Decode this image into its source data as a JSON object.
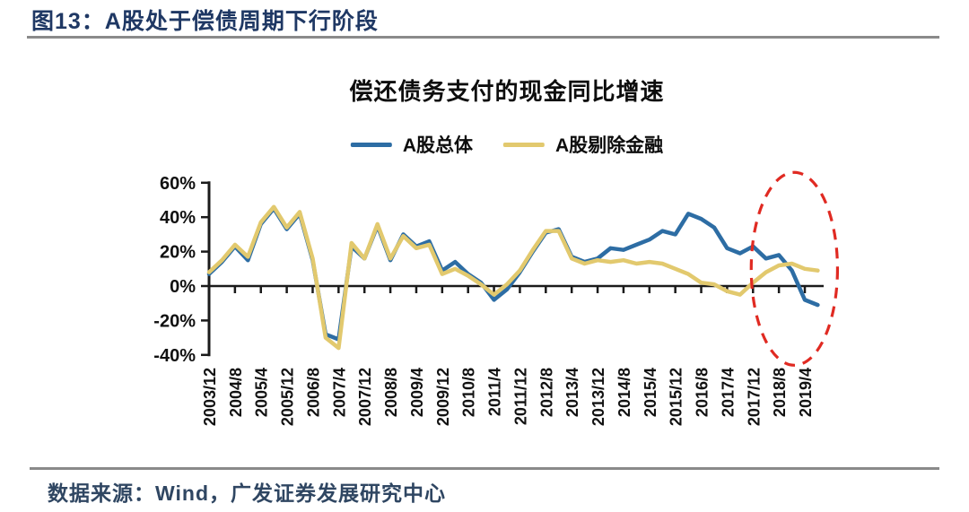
{
  "figure_title": "图13：A股处于偿债周期下行阶段",
  "source_note": "数据来源：Wind，广发证券发展研究中心",
  "colors": {
    "title_navy": "#1f3864",
    "rule_gray": "#8a8a8a",
    "axis_black": "#1a1a1a",
    "series_overall_blue": "#2d6da4",
    "series_exfin_yellow": "#e2c96e",
    "annotation_red": "#e02a22",
    "source_text_navy": "#2f4662"
  },
  "chart_data": {
    "type": "line",
    "title": "偿还债务支付的现金同比增速",
    "ylabel": "",
    "xlabel": "",
    "ylim": [
      -40,
      60
    ],
    "y_ticks": [
      60,
      40,
      20,
      0,
      -20,
      -40
    ],
    "y_tick_suffix": "%",
    "grid": false,
    "legend_position": "top-center",
    "x": [
      "2003/12",
      "2004/4",
      "2004/8",
      "2004/12",
      "2005/4",
      "2005/8",
      "2005/12",
      "2006/4",
      "2006/8",
      "2006/12",
      "2007/4",
      "2007/8",
      "2007/12",
      "2008/4",
      "2008/8",
      "2008/12",
      "2009/4",
      "2009/8",
      "2009/12",
      "2010/4",
      "2010/8",
      "2010/12",
      "2011/4",
      "2011/8",
      "2011/12",
      "2012/4",
      "2012/8",
      "2012/12",
      "2013/4",
      "2013/8",
      "2013/12",
      "2014/4",
      "2014/8",
      "2014/12",
      "2015/4",
      "2015/8",
      "2015/12",
      "2016/4",
      "2016/8",
      "2016/12",
      "2017/4",
      "2017/8",
      "2017/12",
      "2018/4",
      "2018/8",
      "2018/12",
      "2019/4",
      "2019/8"
    ],
    "x_axis_tick_labels": [
      "2003/12",
      "2004/8",
      "2005/4",
      "2005/12",
      "2006/8",
      "2007/4",
      "2007/12",
      "2008/8",
      "2009/4",
      "2009/12",
      "2010/8",
      "2011/4",
      "2011/12",
      "2012/8",
      "2013/4",
      "2013/12",
      "2014/8",
      "2015/4",
      "2015/12",
      "2016/8",
      "2017/4",
      "2017/12",
      "2018/8",
      "2019/4"
    ],
    "series": [
      {
        "name": "A股总体",
        "color": "#2d6da4",
        "values": [
          7,
          14,
          23,
          15,
          36,
          45,
          33,
          42,
          15,
          -28,
          -31,
          23,
          16,
          35,
          15,
          30,
          23,
          26,
          9,
          14,
          7,
          2,
          -8,
          -2,
          8,
          20,
          31,
          33,
          17,
          14,
          16,
          22,
          21,
          24,
          27,
          32,
          30,
          42,
          39,
          34,
          22,
          19,
          23,
          16,
          18,
          9,
          -8,
          -11
        ]
      },
      {
        "name": "A股剔除金融",
        "color": "#e2c96e",
        "values": [
          8,
          15,
          24,
          17,
          37,
          46,
          34,
          43,
          16,
          -30,
          -36,
          25,
          16,
          36,
          16,
          29,
          22,
          24,
          7,
          10,
          6,
          1,
          -5,
          1,
          9,
          21,
          32,
          32,
          16,
          13,
          15,
          14,
          15,
          13,
          14,
          13,
          10,
          7,
          2,
          1,
          -3,
          -5,
          2,
          8,
          12,
          13,
          10,
          9
        ]
      }
    ],
    "annotation": {
      "type": "dashed-ellipse",
      "color": "#e02a22",
      "x_range": [
        "2017/12",
        "2019/8"
      ],
      "y_range": [
        -46,
        66
      ]
    }
  }
}
